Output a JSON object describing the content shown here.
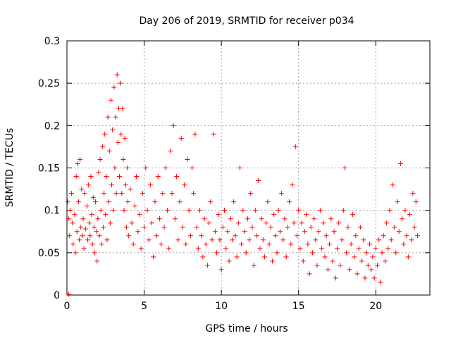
{
  "chart_data": {
    "type": "scatter",
    "title": "Day 206 of 2019, SRMTID for receiver p034",
    "xlabel": "GPS time / hours",
    "ylabel": "SRMTID / TECUs",
    "xlim": [
      0,
      23.5
    ],
    "ylim": [
      0,
      0.3
    ],
    "x_ticks": [
      "0",
      "5",
      "10",
      "15",
      "20"
    ],
    "y_ticks": [
      "0",
      "0.05",
      "0.1",
      "0.15",
      "0.2",
      "0.25",
      "0.3"
    ],
    "grid": true,
    "marker": "+",
    "color": "#ff0000",
    "series": [
      {
        "name": "SRMTID",
        "points": [
          [
            0.05,
            0.11
          ],
          [
            0.1,
            0.09
          ],
          [
            0.15,
            0.07
          ],
          [
            0.2,
            0.1
          ],
          [
            0.3,
            0.12
          ],
          [
            0.35,
            0.085
          ],
          [
            0.4,
            0.06
          ],
          [
            0.5,
            0.095
          ],
          [
            0.55,
            0.05
          ],
          [
            0.6,
            0.14
          ],
          [
            0.65,
            0.075
          ],
          [
            0.7,
            0.155
          ],
          [
            0.75,
            0.11
          ],
          [
            0.8,
            0.065
          ],
          [
            0.85,
            0.16
          ],
          [
            0.9,
            0.08
          ],
          [
            0.95,
            0.125
          ],
          [
            1.0,
            0.07
          ],
          [
            1.05,
            0.09
          ],
          [
            1.1,
            0.055
          ],
          [
            1.15,
            0.12
          ],
          [
            1.2,
            0.078
          ],
          [
            1.3,
            0.105
          ],
          [
            1.35,
            0.065
          ],
          [
            1.4,
            0.13
          ],
          [
            1.45,
            0.085
          ],
          [
            1.5,
            0.07
          ],
          [
            1.55,
            0.14
          ],
          [
            1.6,
            0.095
          ],
          [
            1.65,
            0.06
          ],
          [
            1.7,
            0.115
          ],
          [
            1.75,
            0.08
          ],
          [
            1.8,
            0.05
          ],
          [
            1.85,
            0.11
          ],
          [
            1.9,
            0.075
          ],
          [
            1.95,
            0.04
          ],
          [
            2.0,
            0.09
          ],
          [
            2.05,
            0.145
          ],
          [
            2.1,
            0.07
          ],
          [
            2.15,
            0.16
          ],
          [
            2.2,
            0.1
          ],
          [
            2.25,
            0.06
          ],
          [
            2.3,
            0.175
          ],
          [
            2.35,
            0.08
          ],
          [
            2.4,
            0.12
          ],
          [
            2.45,
            0.19
          ],
          [
            2.5,
            0.095
          ],
          [
            2.55,
            0.14
          ],
          [
            2.6,
            0.065
          ],
          [
            2.65,
            0.21
          ],
          [
            2.7,
            0.11
          ],
          [
            2.75,
            0.17
          ],
          [
            2.8,
            0.085
          ],
          [
            2.85,
            0.23
          ],
          [
            2.9,
            0.13
          ],
          [
            2.95,
            0.195
          ],
          [
            3.0,
            0.1
          ],
          [
            3.05,
            0.245
          ],
          [
            3.1,
            0.15
          ],
          [
            3.15,
            0.21
          ],
          [
            3.2,
            0.12
          ],
          [
            3.25,
            0.26
          ],
          [
            3.3,
            0.18
          ],
          [
            3.35,
            0.22
          ],
          [
            3.4,
            0.14
          ],
          [
            3.45,
            0.25
          ],
          [
            3.5,
            0.19
          ],
          [
            3.55,
            0.12
          ],
          [
            3.6,
            0.22
          ],
          [
            3.65,
            0.16
          ],
          [
            3.7,
            0.1
          ],
          [
            3.75,
            0.185
          ],
          [
            3.8,
            0.13
          ],
          [
            3.85,
            0.08
          ],
          [
            3.9,
            0.15
          ],
          [
            3.95,
            0.11
          ],
          [
            4.0,
            0.07
          ],
          [
            4.1,
            0.125
          ],
          [
            4.2,
            0.085
          ],
          [
            4.3,
            0.06
          ],
          [
            4.4,
            0.105
          ],
          [
            4.5,
            0.14
          ],
          [
            4.6,
            0.075
          ],
          [
            4.7,
            0.095
          ],
          [
            4.8,
            0.055
          ],
          [
            4.9,
            0.12
          ],
          [
            5.0,
            0.08
          ],
          [
            5.1,
            0.15
          ],
          [
            5.2,
            0.1
          ],
          [
            5.3,
            0.065
          ],
          [
            5.4,
            0.13
          ],
          [
            5.5,
            0.085
          ],
          [
            5.6,
            0.045
          ],
          [
            5.7,
            0.11
          ],
          [
            5.8,
            0.07
          ],
          [
            5.9,
            0.14
          ],
          [
            6.0,
            0.09
          ],
          [
            6.1,
            0.06
          ],
          [
            6.2,
            0.12
          ],
          [
            6.3,
            0.08
          ],
          [
            6.4,
            0.15
          ],
          [
            6.5,
            0.1
          ],
          [
            6.6,
            0.055
          ],
          [
            6.7,
            0.17
          ],
          [
            6.8,
            0.12
          ],
          [
            6.9,
            0.2
          ],
          [
            7.0,
            0.09
          ],
          [
            7.1,
            0.14
          ],
          [
            7.2,
            0.065
          ],
          [
            7.3,
            0.11
          ],
          [
            7.4,
            0.185
          ],
          [
            7.5,
            0.08
          ],
          [
            7.6,
            0.13
          ],
          [
            7.7,
            0.06
          ],
          [
            7.8,
            0.16
          ],
          [
            7.9,
            0.1
          ],
          [
            8.0,
            0.07
          ],
          [
            8.1,
            0.15
          ],
          [
            8.2,
            0.12
          ],
          [
            8.3,
            0.19
          ],
          [
            8.4,
            0.08
          ],
          [
            8.5,
            0.055
          ],
          [
            8.6,
            0.1
          ],
          [
            8.7,
            0.07
          ],
          [
            8.8,
            0.045
          ],
          [
            8.9,
            0.09
          ],
          [
            9.0,
            0.06
          ],
          [
            9.1,
            0.035
          ],
          [
            9.2,
            0.085
          ],
          [
            9.3,
            0.11
          ],
          [
            9.4,
            0.065
          ],
          [
            9.5,
            0.19
          ],
          [
            9.6,
            0.075
          ],
          [
            9.7,
            0.05
          ],
          [
            9.8,
            0.095
          ],
          [
            9.9,
            0.065
          ],
          [
            10.0,
            0.03
          ],
          [
            10.1,
            0.08
          ],
          [
            10.2,
            0.1
          ],
          [
            10.3,
            0.055
          ],
          [
            10.4,
            0.075
          ],
          [
            10.5,
            0.04
          ],
          [
            10.6,
            0.09
          ],
          [
            10.7,
            0.065
          ],
          [
            10.8,
            0.11
          ],
          [
            10.9,
            0.07
          ],
          [
            11.0,
            0.045
          ],
          [
            11.1,
            0.085
          ],
          [
            11.2,
            0.15
          ],
          [
            11.3,
            0.06
          ],
          [
            11.4,
            0.1
          ],
          [
            11.5,
            0.075
          ],
          [
            11.6,
            0.05
          ],
          [
            11.7,
            0.09
          ],
          [
            11.8,
            0.065
          ],
          [
            11.9,
            0.12
          ],
          [
            12.0,
            0.08
          ],
          [
            12.1,
            0.035
          ],
          [
            12.2,
            0.1
          ],
          [
            12.3,
            0.07
          ],
          [
            12.4,
            0.135
          ],
          [
            12.5,
            0.055
          ],
          [
            12.6,
            0.09
          ],
          [
            12.7,
            0.065
          ],
          [
            12.8,
            0.045
          ],
          [
            12.9,
            0.085
          ],
          [
            13.0,
            0.11
          ],
          [
            13.1,
            0.06
          ],
          [
            13.2,
            0.08
          ],
          [
            13.3,
            0.04
          ],
          [
            13.4,
            0.095
          ],
          [
            13.5,
            0.07
          ],
          [
            13.6,
            0.05
          ],
          [
            13.7,
            0.1
          ],
          [
            13.8,
            0.075
          ],
          [
            13.9,
            0.12
          ],
          [
            14.0,
            0.065
          ],
          [
            14.1,
            0.09
          ],
          [
            14.2,
            0.045
          ],
          [
            14.3,
            0.08
          ],
          [
            14.4,
            0.11
          ],
          [
            14.5,
            0.06
          ],
          [
            14.6,
            0.13
          ],
          [
            14.7,
            0.085
          ],
          [
            14.8,
            0.175
          ],
          [
            14.9,
            0.07
          ],
          [
            15.0,
            0.1
          ],
          [
            15.1,
            0.055
          ],
          [
            15.2,
            0.085
          ],
          [
            15.3,
            0.04
          ],
          [
            15.4,
            0.075
          ],
          [
            15.5,
            0.095
          ],
          [
            15.6,
            0.06
          ],
          [
            15.7,
            0.025
          ],
          [
            15.8,
            0.08
          ],
          [
            15.9,
            0.05
          ],
          [
            16.0,
            0.09
          ],
          [
            16.1,
            0.065
          ],
          [
            16.2,
            0.035
          ],
          [
            16.3,
            0.075
          ],
          [
            16.4,
            0.1
          ],
          [
            16.5,
            0.055
          ],
          [
            16.6,
            0.085
          ],
          [
            16.7,
            0.045
          ],
          [
            16.8,
            0.07
          ],
          [
            16.9,
            0.03
          ],
          [
            17.0,
            0.06
          ],
          [
            17.1,
            0.09
          ],
          [
            17.2,
            0.04
          ],
          [
            17.3,
            0.075
          ],
          [
            17.4,
            0.02
          ],
          [
            17.5,
            0.055
          ],
          [
            17.6,
            0.085
          ],
          [
            17.7,
            0.035
          ],
          [
            17.8,
            0.065
          ],
          [
            17.9,
            0.1
          ],
          [
            18.0,
            0.15
          ],
          [
            18.1,
            0.05
          ],
          [
            18.2,
            0.08
          ],
          [
            18.3,
            0.03
          ],
          [
            18.4,
            0.06
          ],
          [
            18.5,
            0.095
          ],
          [
            18.6,
            0.045
          ],
          [
            18.7,
            0.07
          ],
          [
            18.8,
            0.025
          ],
          [
            18.9,
            0.055
          ],
          [
            19.0,
            0.08
          ],
          [
            19.1,
            0.04
          ],
          [
            19.2,
            0.065
          ],
          [
            19.3,
            0.02
          ],
          [
            19.4,
            0.05
          ],
          [
            19.5,
            0.035
          ],
          [
            19.6,
            0.06
          ],
          [
            19.7,
            0.03
          ],
          [
            19.8,
            0.045
          ],
          [
            19.9,
            0.02
          ],
          [
            20.0,
            0.055
          ],
          [
            20.1,
            0.035
          ],
          [
            20.2,
            0.065
          ],
          [
            20.3,
            0.015
          ],
          [
            20.4,
            0.05
          ],
          [
            20.5,
            0.07
          ],
          [
            20.6,
            0.04
          ],
          [
            20.7,
            0.085
          ],
          [
            20.8,
            0.055
          ],
          [
            20.9,
            0.1
          ],
          [
            21.0,
            0.065
          ],
          [
            21.1,
            0.13
          ],
          [
            21.2,
            0.08
          ],
          [
            21.3,
            0.05
          ],
          [
            21.4,
            0.11
          ],
          [
            21.5,
            0.075
          ],
          [
            21.6,
            0.155
          ],
          [
            21.7,
            0.09
          ],
          [
            21.8,
            0.06
          ],
          [
            21.9,
            0.1
          ],
          [
            22.0,
            0.07
          ],
          [
            22.1,
            0.045
          ],
          [
            22.2,
            0.095
          ],
          [
            22.3,
            0.065
          ],
          [
            22.4,
            0.12
          ],
          [
            22.5,
            0.08
          ],
          [
            22.6,
            0.11
          ],
          [
            22.7,
            0.07
          ],
          [
            0.12,
            0.001
          ]
        ]
      }
    ]
  }
}
